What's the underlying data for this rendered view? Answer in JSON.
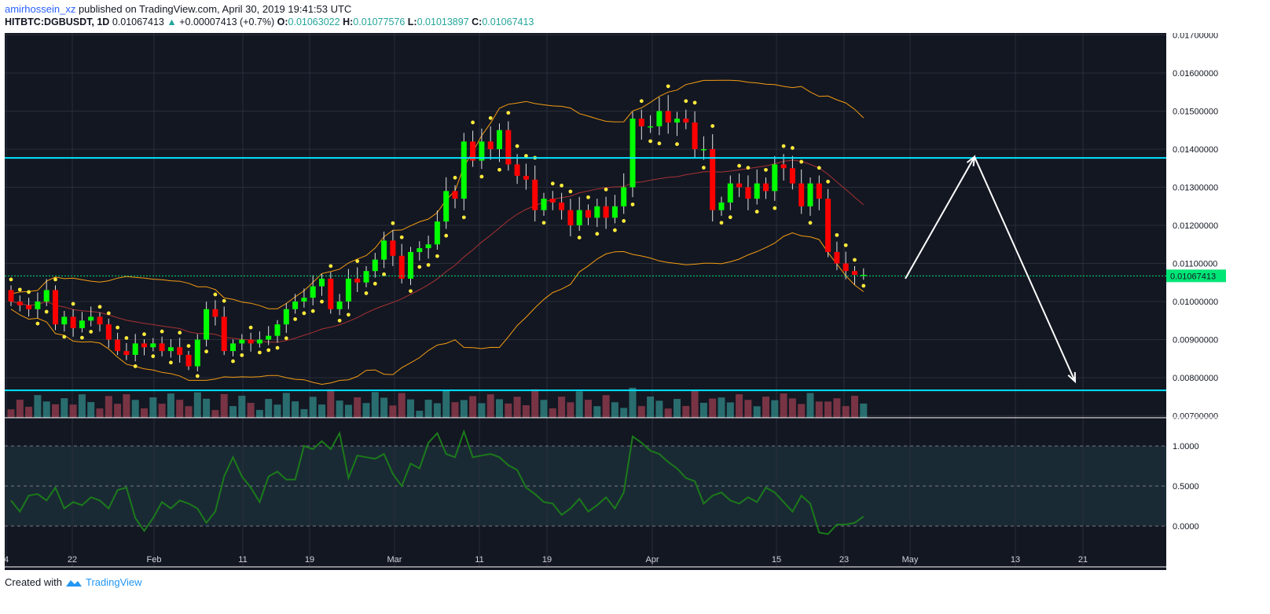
{
  "header": {
    "user": "amirhossein_xz",
    "published": "published on TradingView.com, April 30, 2019 19:41:53 UTC",
    "symbol": "HITBTC:DGBUSDT, 1D",
    "last": "0.01067413",
    "change": "+0.00007413 (+0.7%)",
    "o_label": "O:",
    "o_value": "0.01063022",
    "h_label": "H:",
    "h_value": "0.01077576",
    "l_label": "L:",
    "l_value": "0.01013897",
    "c_label": "C:",
    "c_value": "0.01067413"
  },
  "footer": {
    "created": "Created with",
    "brand": "TradingView"
  },
  "colors": {
    "background": "#131722",
    "up": "#00ff00",
    "down": "#ff0000",
    "vol_up": "#2e7d7d",
    "vol_down": "#8b3a4a",
    "bollinger": "#f39c12",
    "basis": "#a83232",
    "sar": "#ffeb3b",
    "level": "#00e5ff",
    "oscillator": "#1b7a1b"
  },
  "chart_data": {
    "type": "candlestick",
    "y_ticks": [
      "0.00700000",
      "0.00800000",
      "0.00900000",
      "0.01000000",
      "0.01100000",
      "0.01200000",
      "0.01300000",
      "0.01400000",
      "0.01500000",
      "0.01600000",
      "0.01700000"
    ],
    "ylim": [
      0.00695,
      0.01705
    ],
    "x_ticks": [
      "4",
      "22",
      "Feb",
      "11",
      "19",
      "Mar",
      "11",
      "19",
      "Apr",
      "15",
      "23",
      "May",
      "13",
      "21"
    ],
    "last_price_label": "0.01067413",
    "horizontal_levels": [
      0.01377,
      0.00767
    ],
    "price_line": 0.010674,
    "arrow_path": [
      [
        0.01067,
        0.0106
      ],
      [
        0.01379,
        0.0138
      ],
      [
        0.00787,
        0.0079
      ]
    ],
    "closes": [
      0.01,
      0.0099,
      0.0098,
      0.01,
      0.0103,
      0.0094,
      0.0096,
      0.0093,
      0.0095,
      0.0096,
      0.0094,
      0.009,
      0.0087,
      0.0086,
      0.0089,
      0.0088,
      0.0089,
      0.0087,
      0.0088,
      0.0086,
      0.0083,
      0.009,
      0.0098,
      0.0096,
      0.0087,
      0.0089,
      0.009,
      0.0089,
      0.009,
      0.0091,
      0.0094,
      0.0098,
      0.01,
      0.0101,
      0.0104,
      0.0106,
      0.0098,
      0.01,
      0.0106,
      0.0105,
      0.0108,
      0.0111,
      0.0116,
      0.0112,
      0.0106,
      0.0113,
      0.0114,
      0.0115,
      0.0121,
      0.0129,
      0.0127,
      0.0142,
      0.0137,
      0.0142,
      0.014,
      0.0145,
      0.0136,
      0.0133,
      0.0132,
      0.0124,
      0.0127,
      0.0126,
      0.0124,
      0.012,
      0.0124,
      0.0122,
      0.0125,
      0.0122,
      0.0125,
      0.013,
      0.0148,
      0.0146,
      0.0146,
      0.015,
      0.0147,
      0.0148,
      0.0147,
      0.014,
      0.014,
      0.0124,
      0.0126,
      0.0131,
      0.013,
      0.0127,
      0.0131,
      0.0129,
      0.0136,
      0.0135,
      0.0131,
      0.0125,
      0.0131,
      0.0127,
      0.0113,
      0.011,
      0.0108,
      0.0107,
      0.0107
    ],
    "volumes_shown": true,
    "oscillator_ticks": [
      "1.0000",
      "0.5000",
      "0.0000"
    ],
    "oscillator": [
      0.32,
      0.18,
      0.38,
      0.4,
      0.32,
      0.48,
      0.22,
      0.3,
      0.26,
      0.36,
      0.32,
      0.22,
      0.45,
      0.48,
      0.1,
      -0.06,
      0.1,
      0.3,
      0.22,
      0.32,
      0.28,
      0.22,
      0.04,
      0.18,
      0.62,
      0.86,
      0.62,
      0.48,
      0.3,
      0.62,
      0.68,
      0.58,
      0.58,
      1.0,
      0.96,
      1.06,
      0.96,
      1.16,
      0.6,
      0.88,
      0.86,
      0.84,
      0.9,
      0.65,
      0.5,
      0.78,
      0.72,
      1.04,
      1.16,
      0.9,
      0.86,
      1.18,
      0.86,
      0.88,
      0.9,
      0.86,
      0.76,
      0.7,
      0.48,
      0.4,
      0.3,
      0.28,
      0.14,
      0.22,
      0.34,
      0.18,
      0.26,
      0.36,
      0.22,
      0.42,
      1.12,
      1.04,
      0.94,
      0.9,
      0.8,
      0.72,
      0.6,
      0.56,
      0.28,
      0.38,
      0.42,
      0.32,
      0.28,
      0.36,
      0.3,
      0.48,
      0.42,
      0.3,
      0.18,
      0.38,
      0.28,
      -0.08,
      -0.1,
      0.02,
      0.02,
      0.04,
      0.12
    ]
  }
}
